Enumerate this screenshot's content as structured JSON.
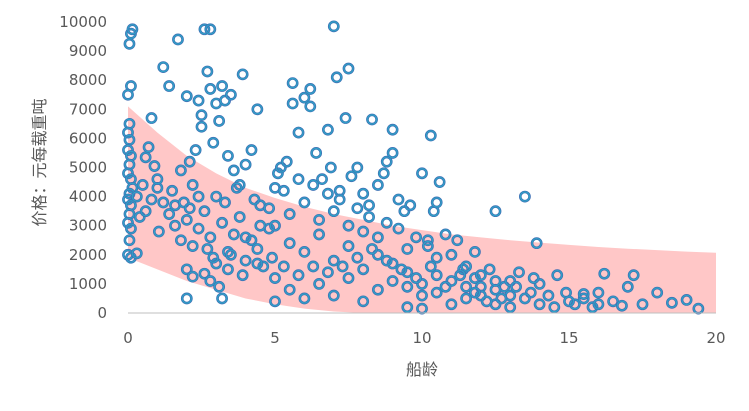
{
  "chart_data": {
    "type": "scatter",
    "title": "",
    "xlabel": "船龄",
    "ylabel": "价格：元每载重吨",
    "xlim": [
      0,
      20
    ],
    "ylim": [
      0,
      10000
    ],
    "x_ticks": [
      "0",
      "5",
      "10",
      "15",
      "20"
    ],
    "y_ticks": [
      "0",
      "1000",
      "2000",
      "3000",
      "4000",
      "5000",
      "6000",
      "7000",
      "8000",
      "9000",
      "10000"
    ],
    "grid": false,
    "legend": "none",
    "colors": {
      "marker_outer": "#3f6fb5",
      "marker_inner": "#2fa3c7",
      "band": "#ffc7c7",
      "axis": "#bfbfbf",
      "text": "#595959"
    },
    "band": {
      "description_free": true,
      "upper": [
        [
          0,
          7100
        ],
        [
          1,
          6200
        ],
        [
          2,
          5400
        ],
        [
          3,
          4800
        ],
        [
          4,
          4300
        ],
        [
          5,
          3950
        ],
        [
          6,
          3650
        ],
        [
          7,
          3400
        ],
        [
          8,
          3200
        ],
        [
          9,
          3000
        ],
        [
          10,
          2850
        ],
        [
          11,
          2700
        ],
        [
          12,
          2600
        ],
        [
          13,
          2500
        ],
        [
          14,
          2420
        ],
        [
          15,
          2340
        ],
        [
          16,
          2270
        ],
        [
          17,
          2210
        ],
        [
          18,
          2160
        ],
        [
          19,
          2110
        ],
        [
          20,
          2070
        ]
      ],
      "lower": [
        [
          0,
          1900
        ],
        [
          1,
          1500
        ],
        [
          2,
          1100
        ],
        [
          3,
          800
        ],
        [
          4,
          500
        ],
        [
          5,
          300
        ],
        [
          6,
          150
        ],
        [
          7,
          50
        ],
        [
          8,
          0
        ],
        [
          20,
          0
        ]
      ]
    },
    "points": [
      [
        0.05,
        9250
      ],
      [
        0.1,
        9600
      ],
      [
        0.15,
        9750
      ],
      [
        0.1,
        7800
      ],
      [
        0.0,
        7500
      ],
      [
        0.05,
        6500
      ],
      [
        0.0,
        6200
      ],
      [
        0.05,
        5950
      ],
      [
        0.0,
        5600
      ],
      [
        0.1,
        5400
      ],
      [
        0.05,
        5100
      ],
      [
        0.0,
        4800
      ],
      [
        0.1,
        4600
      ],
      [
        0.15,
        4300
      ],
      [
        0.05,
        4100
      ],
      [
        0.0,
        3900
      ],
      [
        0.1,
        3700
      ],
      [
        0.05,
        3400
      ],
      [
        0.0,
        3100
      ],
      [
        0.1,
        2900
      ],
      [
        0.05,
        2500
      ],
      [
        0.0,
        2000
      ],
      [
        0.1,
        1900
      ],
      [
        0.3,
        2050
      ],
      [
        0.4,
        3300
      ],
      [
        0.5,
        4400
      ],
      [
        0.6,
        5350
      ],
      [
        0.7,
        5700
      ],
      [
        0.8,
        6700
      ],
      [
        0.9,
        5050
      ],
      [
        1.0,
        4300
      ],
      [
        1.05,
        2800
      ],
      [
        1.2,
        8450
      ],
      [
        1.4,
        7800
      ],
      [
        1.5,
        4200
      ],
      [
        1.6,
        3700
      ],
      [
        1.7,
        9400
      ],
      [
        1.8,
        4900
      ],
      [
        1.9,
        3800
      ],
      [
        2.0,
        3200
      ],
      [
        2.0,
        7450
      ],
      [
        2.1,
        5200
      ],
      [
        2.2,
        4400
      ],
      [
        2.3,
        5600
      ],
      [
        2.4,
        7300
      ],
      [
        2.5,
        6800
      ],
      [
        2.5,
        6400
      ],
      [
        2.6,
        9750
      ],
      [
        2.7,
        8300
      ],
      [
        2.8,
        7700
      ],
      [
        2.9,
        5850
      ],
      [
        3.0,
        7200
      ],
      [
        3.1,
        6600
      ],
      [
        3.2,
        7800
      ],
      [
        3.3,
        7300
      ],
      [
        3.4,
        5400
      ],
      [
        3.5,
        7500
      ],
      [
        3.6,
        4900
      ],
      [
        3.8,
        4400
      ],
      [
        3.9,
        8200
      ],
      [
        4.0,
        5100
      ],
      [
        4.2,
        5600
      ],
      [
        4.4,
        7000
      ],
      [
        4.5,
        3700
      ],
      [
        2.8,
        9750
      ],
      [
        2.0,
        1500
      ],
      [
        2.2,
        1250
      ],
      [
        2.6,
        1350
      ],
      [
        2.8,
        1100
      ],
      [
        3.1,
        900
      ],
      [
        3.2,
        500
      ],
      [
        2.0,
        500
      ],
      [
        2.2,
        2300
      ],
      [
        2.4,
        2900
      ],
      [
        2.6,
        3500
      ],
      [
        2.8,
        2600
      ],
      [
        3.0,
        4000
      ],
      [
        3.2,
        3100
      ],
      [
        3.4,
        2100
      ],
      [
        3.6,
        2700
      ],
      [
        3.8,
        3300
      ],
      [
        4.0,
        1800
      ],
      [
        4.2,
        2500
      ],
      [
        4.4,
        2200
      ],
      [
        4.6,
        1600
      ],
      [
        4.8,
        2900
      ],
      [
        5.0,
        1200
      ],
      [
        5.0,
        400
      ],
      [
        5.0,
        4300
      ],
      [
        5.1,
        4800
      ],
      [
        5.2,
        5000
      ],
      [
        5.4,
        5200
      ],
      [
        5.6,
        7200
      ],
      [
        5.6,
        7900
      ],
      [
        5.8,
        6200
      ],
      [
        6.0,
        7400
      ],
      [
        6.2,
        7700
      ],
      [
        6.2,
        7100
      ],
      [
        6.4,
        5500
      ],
      [
        6.6,
        4600
      ],
      [
        6.8,
        6300
      ],
      [
        6.9,
        5000
      ],
      [
        7.0,
        9850
      ],
      [
        7.1,
        8100
      ],
      [
        7.2,
        4200
      ],
      [
        7.4,
        6700
      ],
      [
        7.5,
        8400
      ],
      [
        7.6,
        4700
      ],
      [
        7.8,
        5000
      ],
      [
        8.0,
        4100
      ],
      [
        8.2,
        3700
      ],
      [
        8.3,
        6650
      ],
      [
        8.5,
        4400
      ],
      [
        8.7,
        4800
      ],
      [
        8.8,
        5200
      ],
      [
        9.0,
        5500
      ],
      [
        9.0,
        6300
      ],
      [
        9.2,
        3900
      ],
      [
        9.4,
        3500
      ],
      [
        9.6,
        3700
      ],
      [
        10.0,
        4800
      ],
      [
        10.2,
        2500
      ],
      [
        10.3,
        6100
      ],
      [
        10.4,
        3500
      ],
      [
        10.5,
        3800
      ],
      [
        10.6,
        4500
      ],
      [
        11.0,
        2000
      ],
      [
        11.4,
        1500
      ],
      [
        11.8,
        1200
      ],
      [
        12.0,
        900
      ],
      [
        12.3,
        1500
      ],
      [
        12.5,
        3500
      ],
      [
        12.8,
        900
      ],
      [
        13.0,
        1100
      ],
      [
        13.3,
        1400
      ],
      [
        13.5,
        4000
      ],
      [
        13.7,
        700
      ],
      [
        13.9,
        2400
      ],
      [
        14.0,
        1000
      ],
      [
        14.3,
        600
      ],
      [
        14.6,
        1300
      ],
      [
        14.9,
        700
      ],
      [
        15.2,
        300
      ],
      [
        15.5,
        500
      ],
      [
        15.8,
        200
      ],
      [
        16.0,
        700
      ],
      [
        16.2,
        1350
      ],
      [
        16.5,
        400
      ],
      [
        16.8,
        250
      ],
      [
        17.0,
        900
      ],
      [
        17.2,
        1300
      ],
      [
        17.5,
        300
      ],
      [
        18.0,
        700
      ],
      [
        18.5,
        350
      ],
      [
        19.0,
        450
      ],
      [
        19.4,
        150
      ],
      [
        10.0,
        150
      ],
      [
        9.5,
        200
      ],
      [
        8.0,
        400
      ],
      [
        7.0,
        600
      ],
      [
        6.0,
        500
      ],
      [
        5.5,
        800
      ],
      [
        6.5,
        1000
      ],
      [
        7.5,
        1200
      ],
      [
        8.5,
        800
      ],
      [
        9.5,
        900
      ],
      [
        10.5,
        700
      ],
      [
        11.5,
        500
      ],
      [
        12.5,
        300
      ],
      [
        13.0,
        200
      ],
      [
        11.0,
        300
      ],
      [
        10.0,
        600
      ],
      [
        9.0,
        1100
      ],
      [
        8.0,
        1500
      ],
      [
        7.0,
        1800
      ],
      [
        6.0,
        2100
      ],
      [
        5.5,
        2400
      ],
      [
        6.5,
        2700
      ],
      [
        7.5,
        3000
      ],
      [
        8.5,
        2600
      ],
      [
        9.5,
        2200
      ],
      [
        10.5,
        1900
      ],
      [
        11.5,
        1600
      ],
      [
        12.0,
        1300
      ],
      [
        5.0,
        3000
      ],
      [
        5.5,
        3400
      ],
      [
        6.0,
        3800
      ],
      [
        6.5,
        3200
      ],
      [
        7.0,
        3500
      ],
      [
        7.5,
        2300
      ],
      [
        8.0,
        2800
      ],
      [
        8.5,
        2000
      ],
      [
        9.0,
        1700
      ],
      [
        9.5,
        1400
      ],
      [
        10.0,
        1000
      ],
      [
        10.5,
        1300
      ],
      [
        11.0,
        1100
      ],
      [
        11.5,
        900
      ],
      [
        12.0,
        600
      ],
      [
        12.5,
        800
      ],
      [
        3.0,
        1700
      ],
      [
        3.5,
        2000
      ],
      [
        4.0,
        2600
      ],
      [
        4.5,
        3000
      ],
      [
        3.3,
        3800
      ],
      [
        3.7,
        4300
      ],
      [
        2.4,
        4000
      ],
      [
        2.1,
        3600
      ],
      [
        1.8,
        2500
      ],
      [
        1.6,
        3000
      ],
      [
        1.4,
        3400
      ],
      [
        1.2,
        3800
      ],
      [
        1.0,
        4600
      ],
      [
        0.8,
        3900
      ],
      [
        0.6,
        3500
      ],
      [
        0.3,
        4000
      ],
      [
        13.5,
        500
      ],
      [
        14.0,
        300
      ],
      [
        14.5,
        200
      ],
      [
        15.0,
        400
      ],
      [
        15.5,
        650
      ],
      [
        16.0,
        300
      ],
      [
        13.0,
        600
      ],
      [
        12.5,
        1100
      ],
      [
        11.8,
        2100
      ],
      [
        11.2,
        2500
      ],
      [
        10.8,
        2700
      ],
      [
        10.2,
        2300
      ],
      [
        9.8,
        2600
      ],
      [
        9.2,
        2900
      ],
      [
        8.8,
        3100
      ],
      [
        8.2,
        3300
      ],
      [
        7.8,
        3600
      ],
      [
        7.2,
        3900
      ],
      [
        6.8,
        4100
      ],
      [
        6.3,
        4400
      ],
      [
        5.8,
        4600
      ],
      [
        5.3,
        4200
      ],
      [
        4.8,
        3600
      ],
      [
        4.3,
        3900
      ],
      [
        2.7,
        2200
      ],
      [
        2.9,
        1900
      ],
      [
        3.4,
        1500
      ],
      [
        3.9,
        1300
      ],
      [
        4.4,
        1700
      ],
      [
        4.9,
        1900
      ],
      [
        5.3,
        1600
      ],
      [
        5.8,
        1300
      ],
      [
        6.3,
        1600
      ],
      [
        6.8,
        1400
      ],
      [
        7.3,
        1600
      ],
      [
        7.8,
        1900
      ],
      [
        8.3,
        2200
      ],
      [
        8.8,
        1800
      ],
      [
        9.3,
        1500
      ],
      [
        9.8,
        1200
      ],
      [
        10.3,
        1600
      ],
      [
        10.8,
        900
      ],
      [
        11.3,
        1300
      ],
      [
        11.8,
        700
      ],
      [
        12.2,
        400
      ],
      [
        12.7,
        500
      ],
      [
        13.2,
        900
      ],
      [
        13.8,
        1200
      ]
    ]
  }
}
